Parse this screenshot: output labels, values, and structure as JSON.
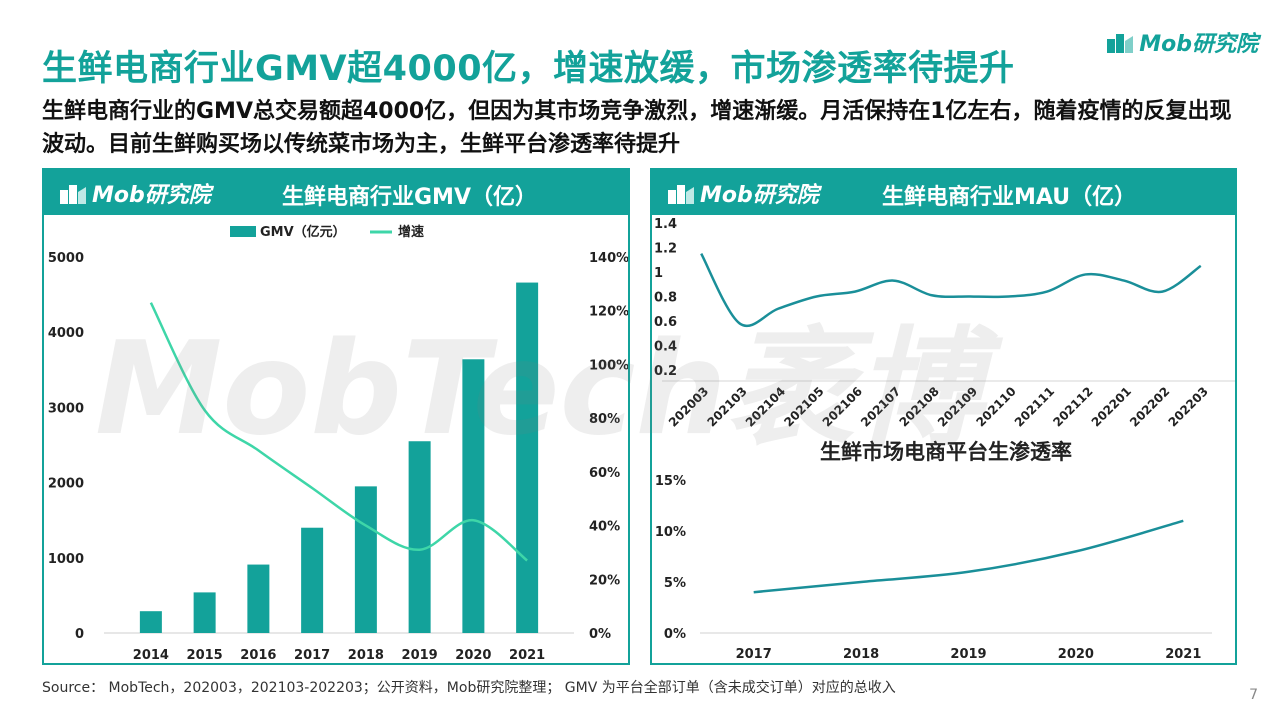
{
  "header": {
    "title": "生鲜电商行业GMV超4000亿，增速放缓，市场渗透率待提升",
    "subtitle": "生鲜电商行业的GMV总交易额超4000亿，但因为其市场竞争激烈，增速渐缓。月活保持在1亿左右，随着疫情的反复出现波动。目前生鲜购买场以传统菜市场为主，生鲜平台渗透率待提升",
    "brand": "Mob研究院"
  },
  "colors": {
    "accent": "#13a29a",
    "line_light": "#3ed6a8",
    "line_dark": "#1a8f99"
  },
  "panels": {
    "left": {
      "brand": "Mob研究院",
      "title": "生鲜电商行业GMV（亿）"
    },
    "right": {
      "brand": "Mob研究院",
      "title": "生鲜电商行业MAU（亿）"
    }
  },
  "watermark": "MobTech袤博",
  "chart_data": [
    {
      "type": "bar",
      "title": "生鲜电商行业GMV（亿）",
      "categories": [
        "2014",
        "2015",
        "2016",
        "2017",
        "2018",
        "2019",
        "2020",
        "2021"
      ],
      "series": [
        {
          "name": "GMV（亿元）",
          "type": "bar",
          "axis": "left",
          "values": [
            290,
            540,
            910,
            1400,
            1950,
            2550,
            3640,
            4660
          ]
        },
        {
          "name": "增速",
          "type": "line",
          "axis": "right",
          "values": [
            1.23,
            0.83,
            0.68,
            0.54,
            0.4,
            0.31,
            0.42,
            0.27
          ]
        }
      ],
      "ylim": [
        0,
        5000
      ],
      "yticks": [
        "0",
        "1000",
        "2000",
        "3000",
        "4000",
        "5000"
      ],
      "y2lim": [
        0,
        1.4
      ],
      "y2ticks": [
        "0%",
        "20%",
        "40%",
        "60%",
        "80%",
        "100%",
        "120%",
        "140%"
      ],
      "legend": "top-center",
      "grid": false
    },
    {
      "type": "line",
      "title": "生鲜电商行业MAU（亿）",
      "categories": [
        "202003",
        "202103",
        "202104",
        "202105",
        "202106",
        "202107",
        "202108",
        "202109",
        "202110",
        "202111",
        "202112",
        "202201",
        "202202",
        "202203"
      ],
      "series": [
        {
          "values": [
            1.15,
            0.58,
            0.7,
            0.8,
            0.84,
            0.93,
            0.81,
            0.8,
            0.8,
            0.84,
            0.98,
            0.93,
            0.84,
            1.05
          ]
        }
      ],
      "ylim": [
        0.2,
        1.4
      ],
      "yticks": [
        "0.2",
        "0.4",
        "0.6",
        "0.8",
        "1",
        "1.2",
        "1.4"
      ],
      "grid": false
    },
    {
      "type": "line",
      "title": "生鲜市场电商平台生渗透率",
      "categories": [
        "2017",
        "2018",
        "2019",
        "2020",
        "2021"
      ],
      "series": [
        {
          "values": [
            0.04,
            0.05,
            0.06,
            0.08,
            0.11
          ]
        }
      ],
      "ylim": [
        0,
        0.15
      ],
      "yticks": [
        "0%",
        "5%",
        "10%",
        "15%"
      ],
      "grid": false
    }
  ],
  "footer": {
    "source": "Source： MobTech，202003，202103-202203；公开资料，Mob研究院整理； GMV 为平台全部订单（含未成交订单）对应的总收入",
    "page": "7"
  }
}
